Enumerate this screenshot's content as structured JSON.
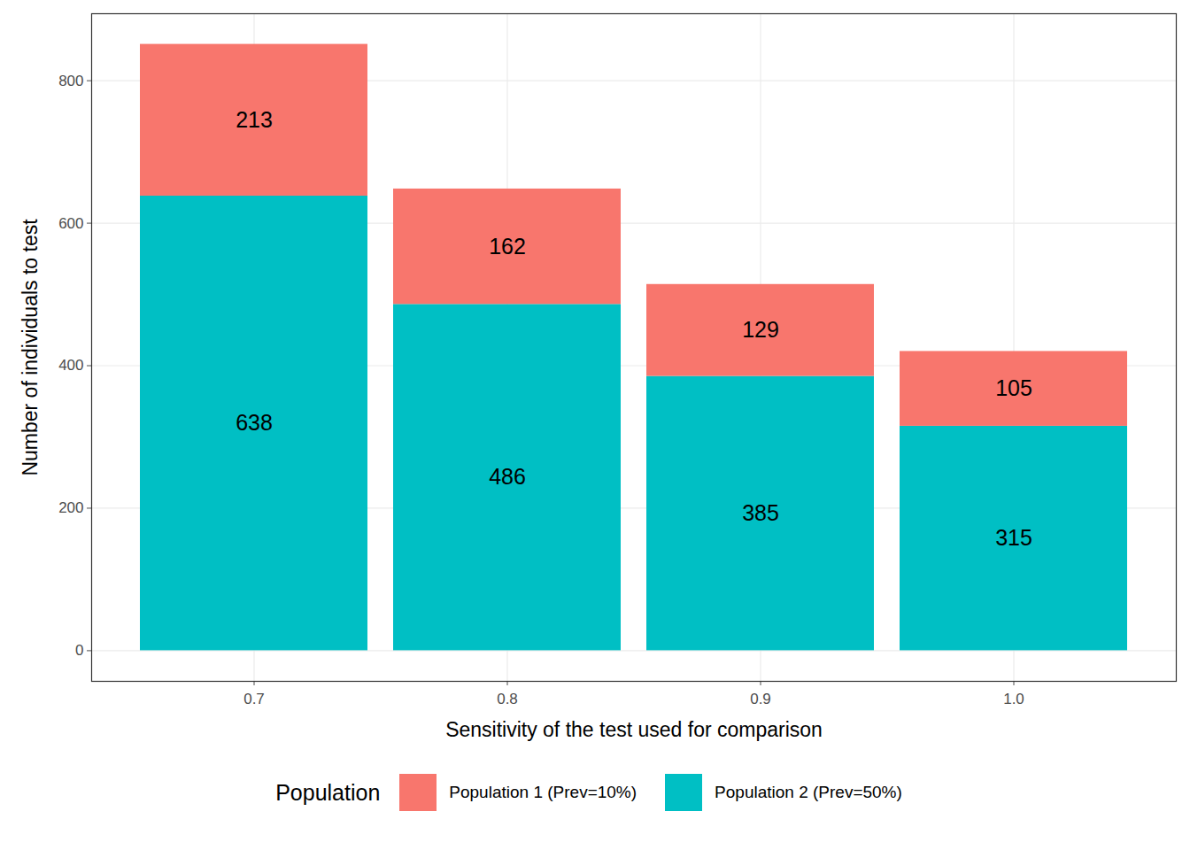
{
  "chart_data": {
    "type": "bar",
    "stacked": true,
    "data_labels": true,
    "grid": true,
    "x_label": "Sensitivity of the test used for comparison",
    "y_label": "Number of individuals to test",
    "categories": [
      "0.7",
      "0.8",
      "0.9",
      "1.0"
    ],
    "series": [
      {
        "name": "Population 2 (Prev=50%)",
        "color": "#00BFC4",
        "values": [
          638,
          486,
          385,
          315
        ]
      },
      {
        "name": "Population 1 (Prev=10%)",
        "color": "#F8766D",
        "values": [
          213,
          162,
          129,
          105
        ]
      }
    ],
    "ylim": [
      -43,
      894
    ],
    "yticks": [
      0,
      200,
      400,
      600,
      800
    ],
    "legend": "bottom",
    "legend_title": "Population"
  }
}
